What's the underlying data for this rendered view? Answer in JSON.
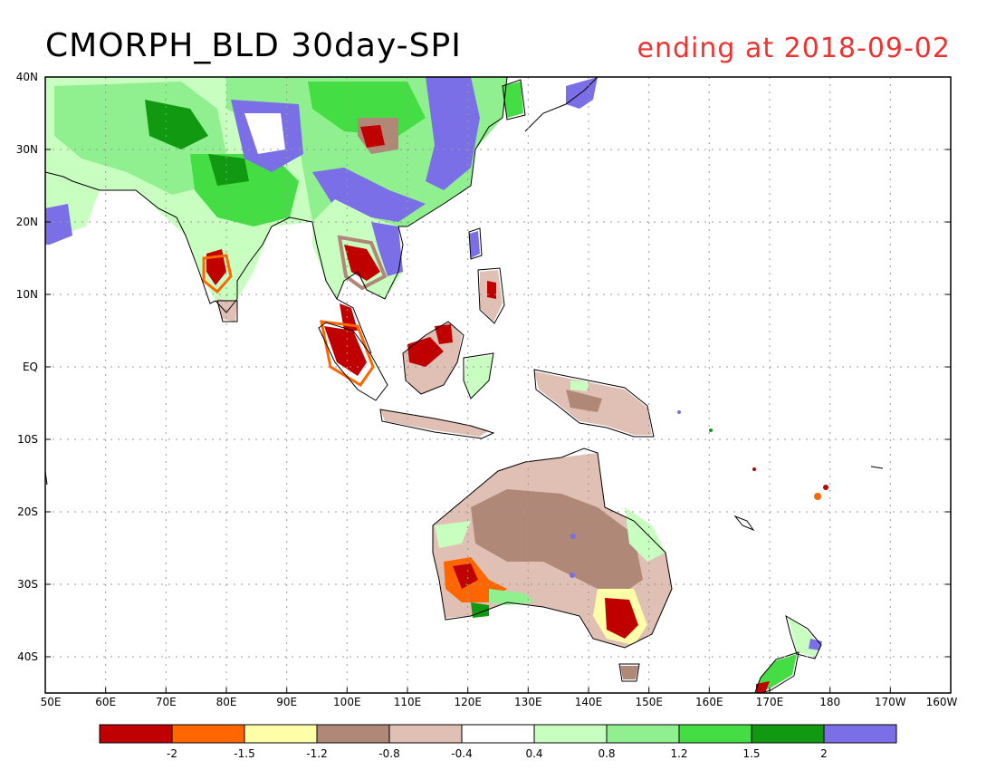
{
  "title": "CMORPH_BLD 30day-SPI",
  "subtitle": "ending at 2018-09-02",
  "lat_ticks": [
    "40N",
    "30N",
    "20N",
    "10N",
    "EQ",
    "10S",
    "20S",
    "30S",
    "40S"
  ],
  "lon_ticks": [
    "50E",
    "60E",
    "70E",
    "80E",
    "90E",
    "100E",
    "110E",
    "120E",
    "130E",
    "140E",
    "150E",
    "160E",
    "170E",
    "180",
    "170W",
    "160W"
  ],
  "legend": {
    "colors": [
      "#c00000",
      "#ff6600",
      "#ffffaa",
      "#b08878",
      "#e0c0b4",
      "#ffffff",
      "#c8ffc0",
      "#90f090",
      "#44dd44",
      "#119911",
      "#7b6fe8"
    ],
    "labels": [
      "-2",
      "-1.5",
      "-1.2",
      "-0.8",
      "-0.4",
      "0.4",
      "0.8",
      "1.2",
      "1.5",
      "2"
    ]
  },
  "map_data": {
    "lat_range": [
      -45,
      40
    ],
    "lon_range": [
      50,
      200
    ],
    "regions": [
      {
        "name": "South Asia"
      },
      {
        "name": "East Asia"
      },
      {
        "name": "Indochina"
      },
      {
        "name": "Philippines"
      },
      {
        "name": "Sumatra"
      },
      {
        "name": "Borneo"
      },
      {
        "name": "Java"
      },
      {
        "name": "New Guinea"
      },
      {
        "name": "Australia"
      },
      {
        "name": "New Zealand"
      }
    ]
  }
}
